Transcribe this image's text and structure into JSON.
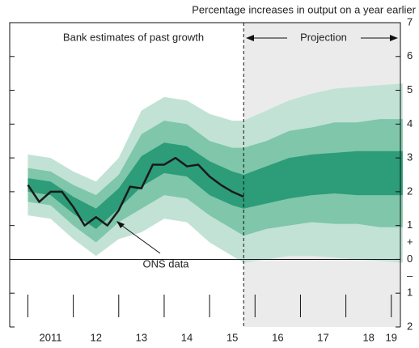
{
  "chart_data": {
    "type": "fan",
    "title": "Percentage increases in output on a year earlier",
    "annotations": [
      "Bank estimates of past growth",
      "Projection"
    ],
    "xlim": [
      2010.6,
      2019.2
    ],
    "ylim": [
      -2,
      7
    ],
    "yticks": [
      7,
      6,
      5,
      4,
      3,
      2,
      1,
      0,
      {
        "value": -1,
        "label": "1"
      },
      {
        "value": -2,
        "label": "2"
      }
    ],
    "y_sign_labels": [
      {
        "value": 0.5,
        "label": "+"
      },
      {
        "value": -0.5,
        "label": "–"
      }
    ],
    "xticks": [
      {
        "value": 2011.5,
        "label": "2011"
      },
      {
        "value": 2012.5,
        "label": "12"
      },
      {
        "value": 2013.5,
        "label": "13"
      },
      {
        "value": 2014.5,
        "label": "14"
      },
      {
        "value": 2015.5,
        "label": "15"
      },
      {
        "value": 2016.5,
        "label": "16"
      },
      {
        "value": 2017.5,
        "label": "17"
      },
      {
        "value": 2018.5,
        "label": "18"
      },
      {
        "value": 2019.0,
        "label": "19"
      }
    ],
    "x_major_ticks": [
      2011,
      2012,
      2013,
      2014,
      2015,
      2016,
      2017,
      2018,
      2019
    ],
    "projection_start": 2015.75,
    "projection_color": "#ebebeb",
    "zero_line": 0,
    "grid": false,
    "fan": {
      "x": [
        2011.0,
        2011.5,
        2012.0,
        2012.5,
        2013.0,
        2013.5,
        2014.0,
        2014.5,
        2015.0,
        2015.5,
        2015.75,
        2016.25,
        2016.75,
        2017.25,
        2017.75,
        2018.25,
        2018.75,
        2019.25
      ],
      "bands": [
        {
          "color": "#c2e2d6",
          "upper": [
            3.1,
            3.0,
            2.6,
            2.3,
            3.0,
            4.4,
            4.8,
            4.7,
            4.3,
            4.1,
            4.1,
            4.4,
            4.7,
            4.9,
            5.05,
            5.1,
            5.15,
            5.2
          ],
          "lower": [
            1.3,
            1.2,
            0.6,
            0.1,
            0.6,
            0.8,
            1.2,
            1.1,
            0.5,
            0.1,
            -0.1,
            0.0,
            0.1,
            0.1,
            0.05,
            0.0,
            -0.05,
            -0.1
          ]
        },
        {
          "color": "#7fc6ab",
          "upper": [
            2.7,
            2.6,
            2.2,
            1.9,
            2.5,
            3.7,
            4.1,
            4.0,
            3.5,
            3.3,
            3.3,
            3.5,
            3.8,
            3.9,
            4.05,
            4.05,
            4.15,
            4.15
          ],
          "lower": [
            1.7,
            1.6,
            1.0,
            0.5,
            1.1,
            1.5,
            1.9,
            1.8,
            1.3,
            0.9,
            0.7,
            0.9,
            1.0,
            1.1,
            1.05,
            1.05,
            0.95,
            0.95
          ]
        },
        {
          "color": "#2d9c78",
          "upper": [
            2.4,
            2.3,
            1.85,
            1.5,
            2.1,
            3.05,
            3.45,
            3.35,
            2.9,
            2.6,
            2.5,
            2.75,
            3.0,
            3.1,
            3.15,
            3.2,
            3.2,
            3.2
          ],
          "lower": [
            2.0,
            1.9,
            1.35,
            0.9,
            1.5,
            2.15,
            2.55,
            2.45,
            1.9,
            1.6,
            1.5,
            1.65,
            1.8,
            1.9,
            1.95,
            1.9,
            1.9,
            1.9
          ]
        }
      ]
    },
    "series": [
      {
        "name": "ONS data",
        "color": "#1a1a1a",
        "x": [
          2011.0,
          2011.25,
          2011.5,
          2011.75,
          2012.0,
          2012.25,
          2012.5,
          2012.75,
          2013.0,
          2013.25,
          2013.5,
          2013.75,
          2014.0,
          2014.25,
          2014.5,
          2014.75,
          2015.0,
          2015.25,
          2015.5,
          2015.75
        ],
        "values": [
          2.2,
          1.7,
          2.0,
          2.0,
          1.55,
          1.0,
          1.25,
          1.0,
          1.45,
          2.15,
          2.1,
          2.8,
          2.8,
          3.0,
          2.75,
          2.8,
          2.45,
          2.2,
          2.0,
          1.85
        ]
      }
    ]
  }
}
